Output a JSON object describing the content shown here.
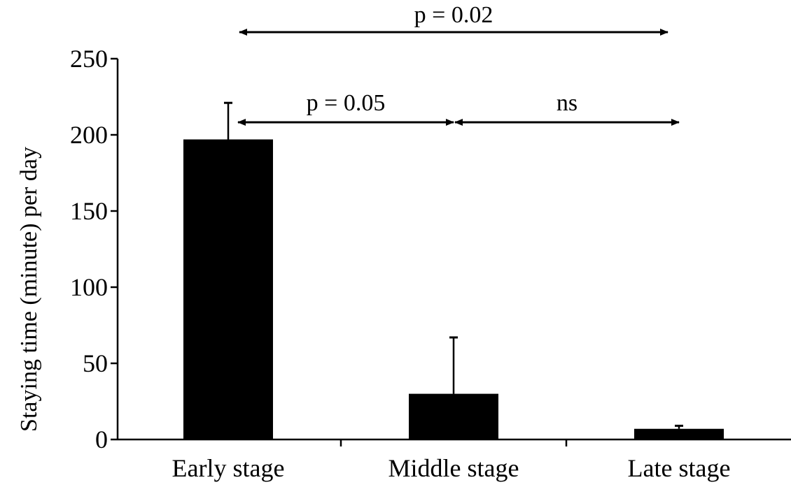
{
  "chart_data": {
    "type": "bar",
    "title": "",
    "xlabel": "",
    "ylabel": "Staying time (minute) per day",
    "ylim": [
      0,
      250
    ],
    "yticks": [
      0,
      50,
      100,
      150,
      200,
      250
    ],
    "categories": [
      "Early stage",
      "Middle stage",
      "Late stage"
    ],
    "values": [
      197,
      30,
      7
    ],
    "error_upper": [
      221,
      67,
      9
    ],
    "bar_color": "#000000",
    "grid": false,
    "legend": "none",
    "comparisons": [
      {
        "from": 0,
        "to": 2,
        "label": "p = 0.02",
        "level": "top"
      },
      {
        "from": 0,
        "to": 1,
        "label": "p = 0.05",
        "level": "lower"
      },
      {
        "from": 1,
        "to": 2,
        "label": "ns",
        "level": "lower"
      }
    ]
  }
}
